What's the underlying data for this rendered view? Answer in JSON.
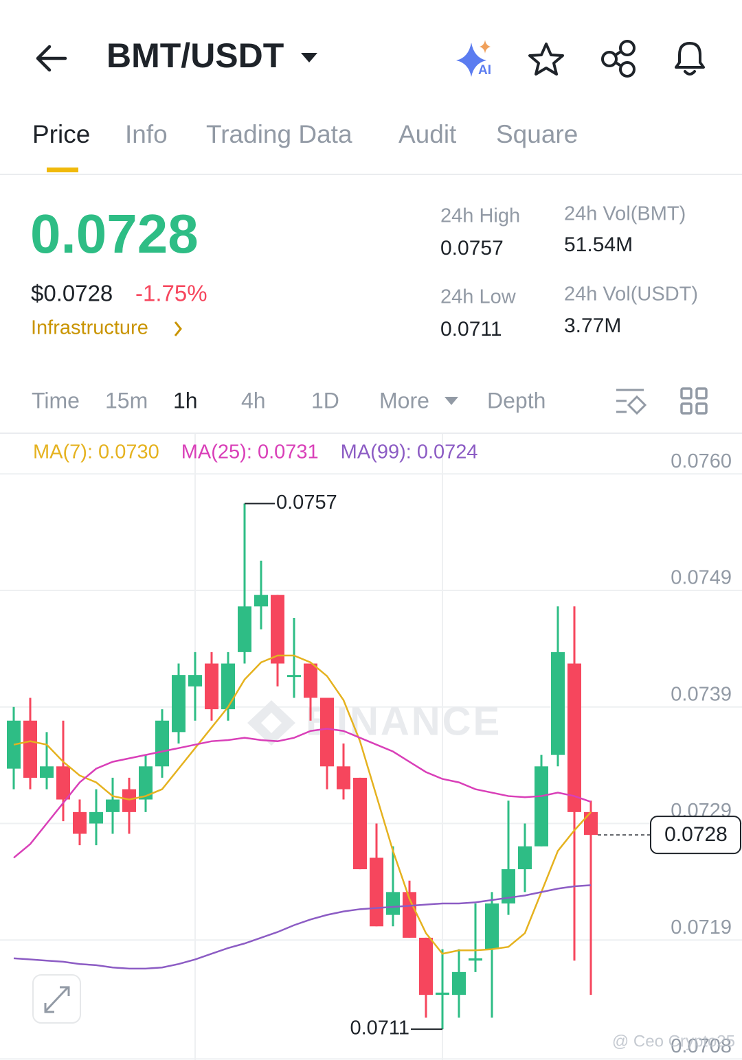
{
  "header": {
    "title": "BMT/USDT"
  },
  "tabs": [
    "Price",
    "Info",
    "Trading Data",
    "Audit",
    "Square"
  ],
  "price": {
    "last": "0.0728",
    "usd": "$0.0728",
    "change": "-1.75%",
    "sector": "Infrastructure"
  },
  "stats": [
    {
      "label": "24h High",
      "value": "0.0757"
    },
    {
      "label": "24h Vol(BMT)",
      "value": "51.54M"
    },
    {
      "label": "24h Low",
      "value": "0.0711"
    },
    {
      "label": "24h Vol(USDT)",
      "value": "3.77M"
    }
  ],
  "intervals": [
    "Time",
    "15m",
    "1h",
    "4h",
    "1D",
    "More",
    "Depth"
  ],
  "chart_data": {
    "type": "candlestick",
    "up_color": "#2ebd85",
    "down_color": "#f6465d",
    "ylim": [
      0.07083,
      0.07631
    ],
    "yticks": [
      {
        "value": 0.07596,
        "label": "0.0760"
      },
      {
        "value": 0.07494,
        "label": "0.0749"
      },
      {
        "value": 0.07392,
        "label": "0.0739"
      },
      {
        "value": 0.0729,
        "label": "0.0729"
      },
      {
        "value": 0.07188,
        "label": "0.0719"
      },
      {
        "value": 0.07084,
        "label": "0.0708"
      }
    ],
    "grid": true,
    "candles": [
      {
        "open": 0.07338,
        "high": 0.07392,
        "low": 0.0732,
        "close": 0.0738
      },
      {
        "open": 0.0738,
        "high": 0.074,
        "low": 0.0732,
        "close": 0.0733
      },
      {
        "open": 0.0733,
        "high": 0.0737,
        "low": 0.0732,
        "close": 0.0734
      },
      {
        "open": 0.0734,
        "high": 0.0738,
        "low": 0.07292,
        "close": 0.07311
      },
      {
        "open": 0.073,
        "high": 0.07311,
        "low": 0.07271,
        "close": 0.07281
      },
      {
        "open": 0.0729,
        "high": 0.0732,
        "low": 0.07271,
        "close": 0.073
      },
      {
        "open": 0.073,
        "high": 0.0733,
        "low": 0.07281,
        "close": 0.07311
      },
      {
        "open": 0.0732,
        "high": 0.0733,
        "low": 0.07281,
        "close": 0.073
      },
      {
        "open": 0.07311,
        "high": 0.0735,
        "low": 0.073,
        "close": 0.0734
      },
      {
        "open": 0.0734,
        "high": 0.0739,
        "low": 0.0733,
        "close": 0.0738
      },
      {
        "open": 0.0737,
        "high": 0.0743,
        "low": 0.0736,
        "close": 0.0742
      },
      {
        "open": 0.0741,
        "high": 0.0744,
        "low": 0.0738,
        "close": 0.0742
      },
      {
        "open": 0.0743,
        "high": 0.0744,
        "low": 0.0738,
        "close": 0.0739
      },
      {
        "open": 0.0739,
        "high": 0.0744,
        "low": 0.0738,
        "close": 0.0743
      },
      {
        "open": 0.0744,
        "high": 0.0757,
        "low": 0.0743,
        "close": 0.0748
      },
      {
        "open": 0.0748,
        "high": 0.0752,
        "low": 0.0746,
        "close": 0.0749
      },
      {
        "open": 0.0749,
        "high": 0.0749,
        "low": 0.0741,
        "close": 0.0743
      },
      {
        "open": 0.0742,
        "high": 0.0747,
        "low": 0.074,
        "close": 0.0742
      },
      {
        "open": 0.0743,
        "high": 0.0743,
        "low": 0.0738,
        "close": 0.074
      },
      {
        "open": 0.074,
        "high": 0.074,
        "low": 0.0732,
        "close": 0.0734
      },
      {
        "open": 0.0734,
        "high": 0.0736,
        "low": 0.07311,
        "close": 0.0732
      },
      {
        "open": 0.0733,
        "high": 0.0733,
        "low": 0.0725,
        "close": 0.0725
      },
      {
        "open": 0.0726,
        "high": 0.0729,
        "low": 0.072,
        "close": 0.072
      },
      {
        "open": 0.0721,
        "high": 0.0727,
        "low": 0.072,
        "close": 0.0723
      },
      {
        "open": 0.0723,
        "high": 0.0724,
        "low": 0.0719,
        "close": 0.0719
      },
      {
        "open": 0.0719,
        "high": 0.0719,
        "low": 0.0712,
        "close": 0.0714
      },
      {
        "open": 0.0714,
        "high": 0.0718,
        "low": 0.0711,
        "close": 0.07142
      },
      {
        "open": 0.0714,
        "high": 0.0718,
        "low": 0.0712,
        "close": 0.0716
      },
      {
        "open": 0.0717,
        "high": 0.0722,
        "low": 0.0716,
        "close": 0.07172
      },
      {
        "open": 0.0718,
        "high": 0.0723,
        "low": 0.0712,
        "close": 0.0722
      },
      {
        "open": 0.0722,
        "high": 0.0731,
        "low": 0.0721,
        "close": 0.0725
      },
      {
        "open": 0.0725,
        "high": 0.0729,
        "low": 0.0723,
        "close": 0.0727
      },
      {
        "open": 0.0727,
        "high": 0.0735,
        "low": 0.0727,
        "close": 0.0734
      },
      {
        "open": 0.0735,
        "high": 0.0748,
        "low": 0.0734,
        "close": 0.0744
      },
      {
        "open": 0.0743,
        "high": 0.0748,
        "low": 0.0717,
        "close": 0.073
      },
      {
        "open": 0.073,
        "high": 0.0731,
        "low": 0.0714,
        "close": 0.0728
      }
    ],
    "ma_series": [
      {
        "label": "MA(7): 0.0730",
        "color": "#e5b21f",
        "values": [
          0.07359,
          0.07362,
          0.07359,
          0.07344,
          0.07332,
          0.07326,
          0.07314,
          0.07311,
          0.07314,
          0.0732,
          0.07338,
          0.07356,
          0.07374,
          0.07392,
          0.07416,
          0.07431,
          0.07437,
          0.07437,
          0.07431,
          0.07419,
          0.07398,
          0.07362,
          0.07314,
          0.07266,
          0.07224,
          0.07194,
          0.07176,
          0.07179,
          0.07179,
          0.0718,
          0.07182,
          0.07194,
          0.0723,
          0.07266,
          0.07284,
          0.073
        ]
      },
      {
        "label": "MA(25): 0.0731",
        "color": "#d93fb8",
        "values": [
          0.0726,
          0.07272,
          0.0729,
          0.07308,
          0.07326,
          0.07338,
          0.07344,
          0.07347,
          0.0735,
          0.07353,
          0.07356,
          0.07359,
          0.07362,
          0.07363,
          0.07365,
          0.07363,
          0.07362,
          0.07365,
          0.07371,
          0.07373,
          0.07371,
          0.07365,
          0.07359,
          0.07353,
          0.07344,
          0.07335,
          0.07329,
          0.07326,
          0.0732,
          0.07317,
          0.07314,
          0.07313,
          0.07314,
          0.07317,
          0.07314,
          0.07309
        ]
      },
      {
        "label": "MA(99): 0.0724",
        "color": "#8c5cc4",
        "values": [
          0.07172,
          0.07171,
          0.0717,
          0.07169,
          0.07167,
          0.07166,
          0.07164,
          0.07163,
          0.07163,
          0.07164,
          0.07167,
          0.07171,
          0.07176,
          0.07181,
          0.07185,
          0.0719,
          0.07195,
          0.07201,
          0.07206,
          0.0721,
          0.07213,
          0.07215,
          0.07216,
          0.07217,
          0.07218,
          0.07219,
          0.0722,
          0.0722,
          0.07221,
          0.07223,
          0.07225,
          0.07227,
          0.0723,
          0.07233,
          0.07235,
          0.07236
        ]
      }
    ],
    "high_marker": 0.0757,
    "low_marker": 0.0711,
    "last_price": 0.0728,
    "watermark": "BINANCE",
    "credit": "@ Ceo Crypto25"
  }
}
